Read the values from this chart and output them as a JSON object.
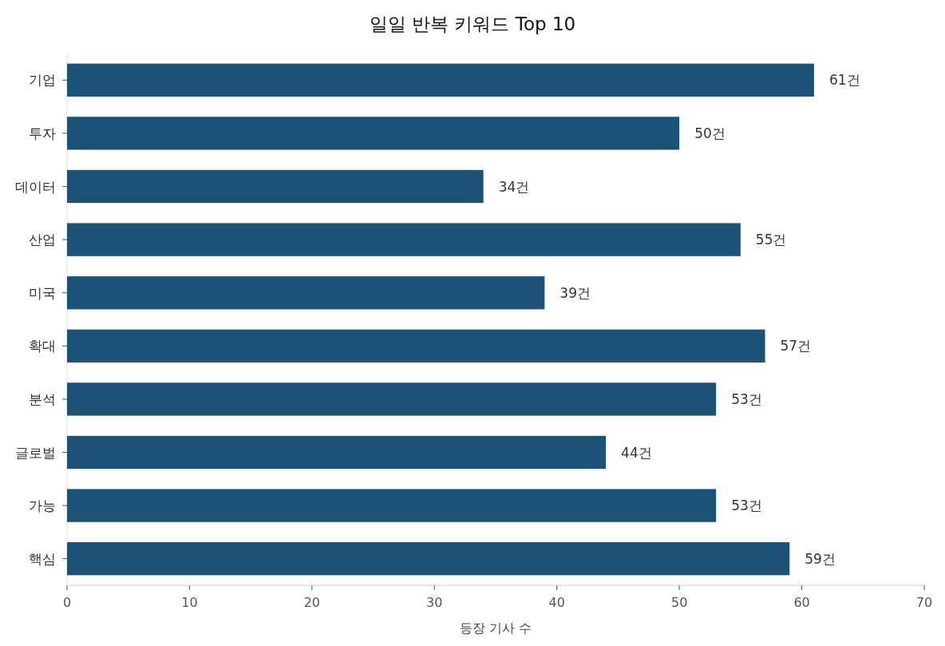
{
  "chart_data": {
    "type": "bar",
    "orientation": "horizontal",
    "title": "일일 반복 키워드 Top 10",
    "xlabel": "등장 기사 수",
    "categories": [
      "기업",
      "투자",
      "데이터",
      "산업",
      "미국",
      "확대",
      "분석",
      "글로벌",
      "가능",
      "핵심"
    ],
    "values": [
      61,
      50,
      34,
      55,
      39,
      57,
      53,
      44,
      53,
      59
    ],
    "value_labels": [
      "61건",
      "50건",
      "34건",
      "55건",
      "39건",
      "57건",
      "53건",
      "44건",
      "53건",
      "59건"
    ],
    "color": "#1b5276",
    "xlim": [
      0,
      70
    ],
    "xticks": [
      0,
      10,
      20,
      30,
      40,
      50,
      60,
      70
    ]
  }
}
